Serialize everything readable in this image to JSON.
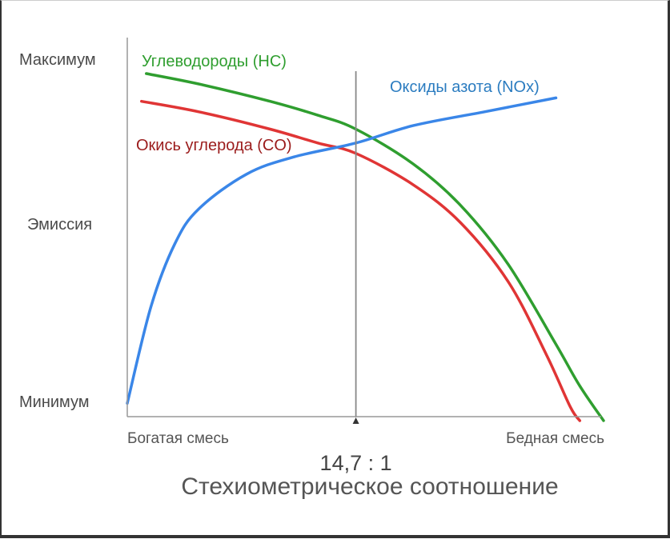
{
  "chart_data": {
    "type": "line",
    "title": "",
    "ylabel": "Эмиссия",
    "y_ticks": [
      "Максимум",
      "Минимум"
    ],
    "x_ticks": [
      "Богатая смесь",
      "Бедная смесь"
    ],
    "x_marker": {
      "label": "14,7 : 1",
      "caption": "Стехиометрическое соотношение",
      "x": 0.48
    },
    "xlim": [
      0,
      1
    ],
    "ylim": [
      0,
      1
    ],
    "grid": false,
    "series": [
      {
        "name": "Углеводороды (HC)",
        "color": "#2f9e2f",
        "x": [
          0.04,
          0.15,
          0.3,
          0.4,
          0.48,
          0.6,
          0.7,
          0.8,
          0.9,
          0.95,
          1.0
        ],
        "y": [
          0.97,
          0.94,
          0.89,
          0.85,
          0.81,
          0.71,
          0.59,
          0.42,
          0.19,
          0.07,
          -0.03
        ]
      },
      {
        "name": "Окись углерода (CO)",
        "color": "#e03535",
        "x": [
          0.03,
          0.15,
          0.3,
          0.4,
          0.48,
          0.6,
          0.7,
          0.8,
          0.88,
          0.93,
          0.95
        ],
        "y": [
          0.89,
          0.86,
          0.81,
          0.77,
          0.74,
          0.65,
          0.54,
          0.37,
          0.16,
          0.01,
          -0.03
        ]
      },
      {
        "name": "Оксиды азота (NOx)",
        "color": "#3a86e8",
        "x": [
          0.0,
          0.05,
          0.1,
          0.15,
          0.25,
          0.35,
          0.48,
          0.6,
          0.75,
          0.9
        ],
        "y": [
          0.02,
          0.3,
          0.48,
          0.58,
          0.68,
          0.73,
          0.77,
          0.82,
          0.86,
          0.9
        ]
      }
    ]
  }
}
